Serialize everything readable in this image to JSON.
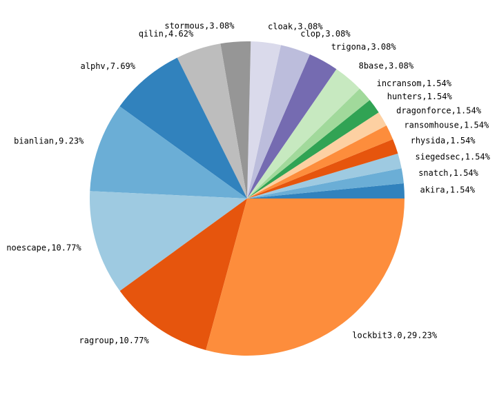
{
  "chart_data": {
    "type": "pie",
    "title": "",
    "start_angle_deg": 0,
    "direction": "counterclockwise",
    "slices": [
      {
        "label": "akira",
        "value": 1.54,
        "display": "akira,1.54%",
        "color": "#3182bd"
      },
      {
        "label": "snatch",
        "value": 1.54,
        "display": "snatch,1.54%",
        "color": "#6baed6"
      },
      {
        "label": "siegedsec",
        "value": 1.54,
        "display": "siegedsec,1.54%",
        "color": "#9ecae1"
      },
      {
        "label": "rhysida",
        "value": 1.54,
        "display": "rhysida,1.54%",
        "color": "#e6550d"
      },
      {
        "label": "ransomhouse",
        "value": 1.54,
        "display": "ransomhouse,1.54%",
        "color": "#fd8d3c"
      },
      {
        "label": "dragonforce",
        "value": 1.54,
        "display": "dragonforce,1.54%",
        "color": "#fdd0a2"
      },
      {
        "label": "hunters",
        "value": 1.54,
        "display": "hunters,1.54%",
        "color": "#31a354"
      },
      {
        "label": "incransom",
        "value": 1.54,
        "display": "incransom,1.54%",
        "color": "#a1d99b"
      },
      {
        "label": "8base",
        "value": 3.08,
        "display": "8base,3.08%",
        "color": "#c7e9c0"
      },
      {
        "label": "trigona",
        "value": 3.08,
        "display": "trigona,3.08%",
        "color": "#756bb1"
      },
      {
        "label": "clop",
        "value": 3.08,
        "display": "clop,3.08%",
        "color": "#bcbddc"
      },
      {
        "label": "cloak",
        "value": 3.08,
        "display": "cloak,3.08%",
        "color": "#dadaeb"
      },
      {
        "label": "stormous",
        "value": 3.08,
        "display": "stormous,3.08%",
        "color": "#969696"
      },
      {
        "label": "qilin",
        "value": 4.62,
        "display": "qilin,4.62%",
        "color": "#bdbdbd"
      },
      {
        "label": "alphv",
        "value": 7.69,
        "display": "alphv,7.69%",
        "color": "#3182bd"
      },
      {
        "label": "bianlian",
        "value": 9.23,
        "display": "bianlian,9.23%",
        "color": "#6baed6"
      },
      {
        "label": "noescape",
        "value": 10.77,
        "display": "noescape,10.77%",
        "color": "#9ecae1"
      },
      {
        "label": "ragroup",
        "value": 10.77,
        "display": "ragroup,10.77%",
        "color": "#e6550d"
      },
      {
        "label": "lockbit3.0",
        "value": 29.23,
        "display": "lockbit3.0,29.23%",
        "color": "#fd8d3c"
      }
    ]
  }
}
